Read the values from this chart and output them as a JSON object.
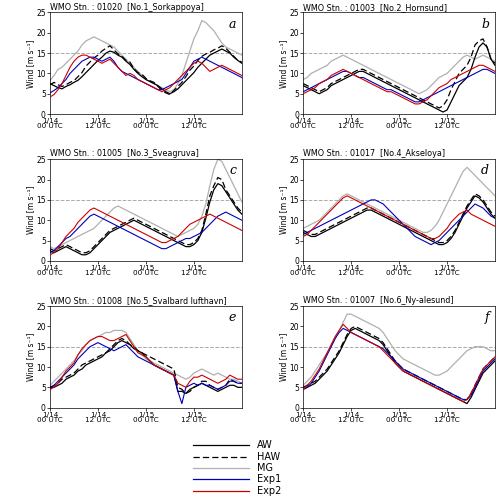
{
  "titles": [
    "WMO Stn. : 01020  [No.1_Sorkappoya]",
    "WMO Stn. : 01003  [No.2_Hornsund]",
    "WMO Stn. : 01005  [No.3_Sveagruva]",
    "WMO Stn. : 01017  [No.4_Akseloya]",
    "WMO Stn. : 01008  [No.5_Svalbard lufthavn]",
    "WMO Stn. : 01007  [No.6_Ny-alesund]"
  ],
  "panel_labels": [
    "a",
    "b",
    "c",
    "d",
    "e",
    "f"
  ],
  "ylabel": "Wind [m s⁻¹]",
  "xtick_labels": [
    "1/14\n00 UTC",
    "1/14\n12 UTC",
    "1/15\n00 UTC",
    "1/15\n12 UTC"
  ],
  "ylim": [
    0,
    25
  ],
  "yticks": [
    0,
    5,
    10,
    15,
    20,
    25
  ],
  "dashed_line_y": 15,
  "n_points": 49,
  "colors": {
    "AW": "#000000",
    "HAW": "#000000",
    "MG": "#b0b0b0",
    "Exp1": "#0000bb",
    "Exp2": "#cc0000"
  },
  "panel_a": {
    "AW": [
      7.5,
      7.0,
      6.5,
      6.2,
      6.8,
      7.2,
      7.8,
      8.3,
      9.2,
      10.2,
      11.2,
      12.2,
      13.2,
      14.0,
      15.0,
      15.5,
      15.2,
      14.5,
      14.0,
      13.0,
      12.2,
      11.0,
      10.0,
      9.2,
      8.5,
      8.0,
      7.5,
      7.0,
      6.2,
      5.5,
      5.0,
      5.5,
      6.2,
      7.2,
      8.2,
      9.2,
      10.2,
      11.5,
      12.5,
      13.5,
      14.5,
      15.0,
      15.5,
      16.0,
      15.5,
      15.0,
      14.0,
      13.2,
      12.5
    ],
    "HAW": [
      7.2,
      7.8,
      7.2,
      6.8,
      7.2,
      7.8,
      8.2,
      9.2,
      10.2,
      11.8,
      12.8,
      13.8,
      14.5,
      15.5,
      16.2,
      16.8,
      15.8,
      14.8,
      14.2,
      13.2,
      12.8,
      11.2,
      10.2,
      9.8,
      8.8,
      8.2,
      7.8,
      6.8,
      5.8,
      5.2,
      4.8,
      5.8,
      6.8,
      7.8,
      9.2,
      10.8,
      11.8,
      13.2,
      14.2,
      14.8,
      15.2,
      15.8,
      16.2,
      16.8,
      16.2,
      15.2,
      14.2,
      13.2,
      12.8
    ],
    "MG": [
      8.2,
      9.5,
      11.0,
      11.5,
      12.5,
      13.5,
      14.5,
      15.5,
      17.0,
      18.0,
      18.5,
      19.0,
      18.5,
      18.0,
      17.5,
      17.0,
      16.5,
      15.5,
      14.5,
      13.5,
      12.5,
      11.5,
      10.5,
      9.5,
      8.5,
      8.0,
      7.5,
      7.0,
      6.5,
      6.0,
      5.5,
      6.0,
      7.5,
      9.5,
      12.5,
      15.5,
      18.5,
      20.5,
      23.0,
      22.5,
      21.5,
      20.5,
      19.0,
      17.5,
      16.5,
      16.0,
      15.5,
      15.0,
      14.5
    ],
    "Exp1": [
      5.2,
      5.8,
      6.5,
      7.5,
      8.5,
      10.0,
      11.0,
      12.0,
      13.0,
      13.5,
      14.0,
      14.0,
      13.5,
      13.0,
      13.5,
      14.0,
      13.0,
      11.5,
      10.5,
      10.0,
      9.5,
      9.0,
      8.5,
      8.0,
      7.5,
      7.0,
      6.5,
      6.0,
      6.0,
      6.5,
      7.0,
      7.5,
      8.0,
      8.5,
      10.0,
      11.5,
      13.0,
      13.5,
      14.0,
      13.5,
      13.0,
      12.5,
      12.0,
      11.5,
      11.0,
      10.5,
      10.0,
      9.5,
      9.0
    ],
    "Exp2": [
      4.2,
      4.8,
      6.0,
      7.5,
      9.5,
      11.5,
      13.0,
      14.0,
      14.5,
      14.5,
      14.0,
      13.5,
      13.0,
      12.5,
      13.0,
      13.5,
      12.5,
      11.5,
      10.5,
      9.5,
      10.0,
      9.5,
      8.5,
      8.0,
      7.5,
      7.0,
      6.5,
      6.0,
      5.5,
      6.0,
      6.5,
      7.5,
      8.5,
      9.5,
      10.5,
      11.5,
      12.5,
      13.0,
      12.5,
      11.5,
      10.5,
      11.0,
      11.5,
      12.0,
      11.5,
      11.0,
      10.5,
      10.0,
      9.5
    ]
  },
  "panel_b": {
    "AW": [
      7.0,
      6.5,
      6.0,
      5.5,
      5.0,
      5.5,
      6.0,
      7.0,
      7.5,
      8.0,
      8.5,
      9.0,
      9.5,
      10.0,
      10.5,
      10.5,
      10.0,
      9.5,
      9.0,
      8.5,
      8.0,
      7.5,
      7.0,
      6.5,
      6.0,
      5.5,
      5.0,
      4.5,
      4.0,
      3.5,
      3.0,
      2.5,
      2.0,
      1.5,
      1.0,
      0.5,
      1.0,
      3.0,
      5.0,
      7.0,
      8.0,
      9.0,
      11.0,
      14.0,
      16.5,
      17.5,
      16.5,
      13.5,
      12.0
    ],
    "HAW": [
      7.5,
      7.0,
      6.5,
      6.0,
      5.5,
      6.0,
      6.5,
      7.5,
      8.0,
      8.5,
      9.0,
      9.5,
      10.0,
      10.5,
      11.0,
      11.0,
      10.5,
      10.0,
      9.5,
      9.0,
      8.5,
      8.0,
      7.5,
      7.0,
      6.5,
      6.0,
      5.5,
      5.0,
      4.5,
      4.0,
      3.5,
      3.0,
      2.5,
      2.0,
      1.5,
      2.0,
      3.5,
      6.0,
      8.0,
      10.0,
      11.0,
      12.0,
      14.0,
      17.0,
      18.0,
      18.5,
      16.5,
      13.5,
      12.5
    ],
    "MG": [
      8.5,
      9.0,
      10.0,
      10.5,
      11.0,
      11.5,
      12.0,
      13.0,
      13.5,
      14.0,
      14.5,
      14.0,
      13.5,
      13.0,
      12.5,
      12.0,
      11.5,
      11.0,
      10.5,
      10.0,
      9.5,
      9.0,
      8.5,
      8.0,
      7.5,
      7.0,
      6.5,
      6.0,
      5.5,
      5.0,
      5.5,
      6.0,
      7.0,
      8.0,
      9.0,
      9.5,
      10.0,
      11.0,
      12.0,
      13.0,
      14.0,
      14.5,
      14.0,
      13.5,
      14.0,
      14.5,
      14.0,
      13.5,
      13.0
    ],
    "Exp1": [
      5.5,
      6.0,
      6.5,
      7.0,
      7.5,
      8.0,
      8.5,
      9.0,
      9.5,
      10.0,
      10.5,
      10.5,
      10.0,
      9.5,
      9.0,
      9.0,
      8.5,
      8.0,
      7.5,
      7.0,
      6.5,
      6.0,
      6.0,
      5.5,
      5.0,
      4.5,
      4.0,
      3.5,
      3.0,
      3.0,
      3.5,
      4.0,
      4.5,
      5.0,
      5.5,
      6.0,
      6.5,
      7.0,
      7.5,
      8.0,
      8.5,
      9.0,
      9.5,
      10.0,
      10.5,
      11.0,
      11.0,
      10.5,
      10.0
    ],
    "Exp2": [
      5.0,
      5.5,
      6.0,
      6.5,
      7.5,
      8.0,
      8.5,
      9.5,
      10.0,
      10.5,
      11.0,
      10.5,
      10.0,
      9.5,
      9.0,
      8.5,
      8.0,
      7.5,
      7.0,
      6.5,
      6.0,
      5.5,
      5.5,
      5.0,
      4.5,
      4.0,
      3.5,
      3.0,
      2.5,
      2.5,
      3.0,
      3.5,
      4.5,
      5.5,
      6.5,
      7.0,
      7.5,
      8.5,
      9.0,
      9.5,
      10.0,
      10.5,
      11.0,
      11.5,
      12.0,
      12.0,
      11.5,
      11.0,
      10.5
    ]
  },
  "panel_c": {
    "AW": [
      2.5,
      2.0,
      2.5,
      3.0,
      3.5,
      3.0,
      2.5,
      2.0,
      1.5,
      1.5,
      2.0,
      3.0,
      4.0,
      5.0,
      6.0,
      7.0,
      7.5,
      8.0,
      8.5,
      9.0,
      9.5,
      10.0,
      9.5,
      9.0,
      8.5,
      8.0,
      7.5,
      7.0,
      6.5,
      6.0,
      5.5,
      5.0,
      4.5,
      4.0,
      3.5,
      3.5,
      4.0,
      5.0,
      7.0,
      10.5,
      14.5,
      17.5,
      19.0,
      18.5,
      17.0,
      15.5,
      14.0,
      12.5,
      11.5
    ],
    "HAW": [
      3.0,
      2.5,
      3.0,
      3.5,
      4.0,
      3.5,
      3.0,
      2.5,
      2.0,
      2.0,
      2.5,
      3.5,
      4.5,
      5.5,
      6.5,
      7.5,
      8.0,
      8.5,
      9.0,
      9.5,
      10.0,
      10.5,
      10.0,
      9.5,
      9.0,
      8.5,
      8.0,
      7.5,
      7.0,
      6.5,
      6.0,
      5.5,
      5.0,
      4.5,
      4.0,
      4.0,
      4.5,
      5.5,
      7.5,
      11.5,
      16.0,
      18.5,
      20.5,
      20.0,
      17.5,
      16.0,
      14.5,
      13.0,
      12.0
    ],
    "MG": [
      3.5,
      3.0,
      3.5,
      4.0,
      4.5,
      5.0,
      5.5,
      6.0,
      6.5,
      7.0,
      7.5,
      8.0,
      9.0,
      10.0,
      11.0,
      12.0,
      13.0,
      13.5,
      13.0,
      12.5,
      12.0,
      11.5,
      11.0,
      10.5,
      10.0,
      9.5,
      9.0,
      8.5,
      8.0,
      7.5,
      7.0,
      6.5,
      6.0,
      6.5,
      7.0,
      7.5,
      8.0,
      9.0,
      11.0,
      14.0,
      18.5,
      22.5,
      25.0,
      24.5,
      22.5,
      20.5,
      18.5,
      16.5,
      14.5
    ],
    "Exp1": [
      2.0,
      2.5,
      3.5,
      4.5,
      5.5,
      6.0,
      7.0,
      8.0,
      9.0,
      10.0,
      11.0,
      11.5,
      11.0,
      10.5,
      10.0,
      9.5,
      9.0,
      8.5,
      8.0,
      7.5,
      7.0,
      6.5,
      6.0,
      5.5,
      5.0,
      4.5,
      4.0,
      3.5,
      3.0,
      3.0,
      3.5,
      4.0,
      4.5,
      5.0,
      5.5,
      5.5,
      6.0,
      6.5,
      7.0,
      8.0,
      9.0,
      10.0,
      11.0,
      11.5,
      12.0,
      11.5,
      11.0,
      10.5,
      10.0
    ],
    "Exp2": [
      1.5,
      2.0,
      3.0,
      4.5,
      6.0,
      7.0,
      8.0,
      9.5,
      10.5,
      11.5,
      12.5,
      13.0,
      12.5,
      12.0,
      11.5,
      11.0,
      10.5,
      10.0,
      9.5,
      9.0,
      8.5,
      8.0,
      7.5,
      7.0,
      6.5,
      6.0,
      5.5,
      5.0,
      4.5,
      4.5,
      5.0,
      5.5,
      6.0,
      7.0,
      8.0,
      9.0,
      9.5,
      10.0,
      10.5,
      11.0,
      11.5,
      11.0,
      10.5,
      10.0,
      9.5,
      9.0,
      8.5,
      8.0,
      7.5
    ]
  },
  "panel_d": {
    "AW": [
      7.0,
      6.5,
      6.0,
      6.0,
      6.5,
      7.0,
      7.5,
      8.0,
      8.5,
      9.0,
      9.5,
      10.0,
      10.5,
      11.0,
      11.5,
      12.0,
      12.5,
      12.5,
      12.0,
      11.5,
      11.0,
      10.5,
      10.0,
      9.5,
      9.0,
      8.5,
      8.0,
      7.5,
      7.0,
      6.5,
      6.0,
      5.5,
      5.0,
      4.5,
      4.0,
      4.0,
      4.5,
      5.5,
      7.0,
      9.0,
      11.0,
      13.0,
      14.5,
      16.0,
      15.5,
      14.5,
      13.0,
      11.5,
      10.5
    ],
    "HAW": [
      7.5,
      7.0,
      6.5,
      6.5,
      7.0,
      7.5,
      8.0,
      8.5,
      9.0,
      9.5,
      10.0,
      10.5,
      11.0,
      11.5,
      12.0,
      12.5,
      13.0,
      13.0,
      12.5,
      12.0,
      11.5,
      11.0,
      10.5,
      10.0,
      9.5,
      9.0,
      8.5,
      8.0,
      7.5,
      7.0,
      6.5,
      6.0,
      5.5,
      5.0,
      4.5,
      4.5,
      5.0,
      6.0,
      7.5,
      9.5,
      11.5,
      13.5,
      15.0,
      16.5,
      16.0,
      15.0,
      13.5,
      12.0,
      11.0
    ],
    "MG": [
      8.0,
      8.5,
      9.0,
      9.5,
      10.0,
      11.0,
      12.0,
      13.0,
      14.0,
      15.0,
      16.0,
      16.5,
      16.0,
      15.5,
      15.0,
      14.5,
      14.0,
      13.5,
      13.0,
      12.5,
      12.0,
      11.5,
      11.0,
      10.5,
      10.0,
      9.5,
      9.0,
      8.5,
      8.0,
      7.5,
      7.0,
      7.0,
      7.5,
      8.5,
      10.0,
      12.0,
      14.0,
      16.0,
      18.0,
      20.0,
      22.0,
      23.0,
      22.0,
      21.0,
      20.0,
      19.0,
      18.0,
      17.0,
      16.0
    ],
    "Exp1": [
      6.5,
      7.0,
      7.5,
      8.0,
      8.5,
      9.0,
      9.5,
      10.0,
      10.5,
      11.0,
      11.5,
      12.0,
      12.5,
      13.0,
      13.5,
      14.0,
      14.5,
      15.0,
      15.0,
      14.5,
      14.0,
      13.0,
      12.0,
      11.0,
      10.0,
      9.0,
      8.0,
      7.0,
      6.0,
      5.5,
      5.0,
      4.5,
      4.0,
      4.5,
      5.0,
      6.0,
      7.0,
      8.0,
      9.0,
      10.0,
      11.0,
      12.0,
      13.0,
      14.0,
      13.5,
      13.0,
      12.0,
      11.0,
      10.5
    ],
    "Exp2": [
      6.0,
      6.5,
      7.5,
      8.5,
      9.5,
      10.5,
      11.5,
      12.5,
      13.5,
      14.5,
      15.5,
      16.0,
      15.5,
      15.0,
      14.5,
      14.0,
      13.5,
      13.0,
      12.5,
      12.0,
      11.5,
      11.0,
      10.5,
      10.0,
      9.5,
      9.0,
      8.5,
      8.0,
      7.5,
      7.0,
      6.5,
      6.0,
      5.5,
      5.5,
      6.0,
      7.0,
      8.0,
      9.5,
      10.5,
      11.5,
      12.0,
      12.5,
      11.5,
      11.0,
      10.5,
      10.0,
      9.5,
      9.0,
      8.5
    ]
  },
  "panel_e": {
    "AW": [
      5.0,
      5.0,
      5.5,
      6.0,
      7.0,
      7.5,
      8.0,
      9.0,
      9.5,
      10.5,
      11.0,
      11.5,
      12.0,
      12.5,
      13.5,
      14.0,
      15.0,
      16.0,
      16.5,
      16.0,
      15.5,
      14.5,
      14.0,
      13.5,
      12.5,
      11.5,
      10.5,
      10.0,
      9.5,
      9.0,
      8.5,
      8.0,
      4.0,
      4.0,
      3.5,
      4.5,
      5.0,
      5.5,
      6.0,
      5.5,
      5.0,
      4.5,
      4.0,
      4.5,
      5.0,
      5.5,
      5.5,
      5.0,
      5.0
    ],
    "HAW": [
      5.0,
      5.5,
      6.0,
      7.0,
      7.5,
      8.0,
      8.5,
      9.5,
      10.5,
      11.0,
      11.5,
      12.0,
      12.5,
      13.0,
      13.5,
      14.5,
      15.5,
      16.5,
      17.0,
      16.5,
      15.5,
      15.0,
      14.0,
      13.5,
      13.0,
      12.5,
      12.0,
      11.5,
      11.0,
      10.5,
      10.0,
      9.5,
      5.0,
      4.5,
      3.5,
      4.0,
      5.0,
      5.5,
      6.5,
      6.5,
      5.5,
      5.0,
      4.5,
      5.0,
      5.5,
      7.0,
      6.5,
      6.0,
      6.0
    ],
    "MG": [
      5.5,
      6.5,
      7.5,
      8.5,
      9.5,
      10.5,
      11.5,
      13.0,
      14.0,
      15.5,
      16.5,
      17.0,
      17.5,
      18.0,
      18.5,
      18.5,
      19.0,
      19.0,
      19.0,
      18.5,
      17.0,
      15.5,
      14.0,
      13.0,
      12.0,
      11.5,
      11.0,
      10.5,
      10.0,
      9.5,
      9.0,
      8.5,
      8.0,
      7.5,
      7.0,
      7.5,
      8.5,
      9.0,
      9.5,
      9.0,
      8.5,
      8.0,
      8.5,
      8.0,
      7.5,
      7.0,
      7.0,
      6.5,
      6.0
    ],
    "Exp1": [
      4.5,
      5.5,
      6.5,
      7.5,
      8.5,
      9.5,
      10.5,
      12.0,
      13.0,
      14.0,
      15.0,
      15.5,
      16.0,
      15.5,
      15.0,
      14.5,
      14.0,
      14.5,
      15.0,
      15.5,
      14.5,
      13.5,
      12.5,
      12.0,
      11.5,
      11.0,
      10.5,
      10.0,
      9.5,
      9.0,
      8.5,
      8.0,
      4.0,
      1.0,
      5.0,
      5.5,
      6.0,
      5.5,
      6.0,
      5.5,
      5.5,
      5.0,
      4.5,
      5.0,
      5.5,
      6.5,
      6.5,
      6.0,
      6.0
    ],
    "Exp2": [
      4.5,
      5.0,
      6.0,
      7.5,
      9.0,
      10.0,
      11.0,
      13.0,
      14.5,
      15.5,
      16.5,
      17.0,
      17.5,
      17.5,
      17.0,
      16.5,
      16.5,
      17.0,
      17.5,
      18.0,
      16.5,
      15.0,
      13.5,
      13.0,
      12.5,
      11.5,
      10.5,
      10.0,
      9.5,
      9.0,
      8.5,
      8.0,
      6.0,
      5.5,
      5.0,
      6.5,
      7.5,
      7.5,
      8.0,
      7.5,
      7.0,
      6.5,
      6.0,
      6.5,
      7.0,
      8.0,
      7.5,
      7.0,
      7.0
    ]
  },
  "panel_f": {
    "AW": [
      4.5,
      5.0,
      5.5,
      6.0,
      7.0,
      8.0,
      9.0,
      10.5,
      12.0,
      13.5,
      15.5,
      17.5,
      19.0,
      19.5,
      19.0,
      18.5,
      18.0,
      17.5,
      17.0,
      16.5,
      15.5,
      14.0,
      12.5,
      11.0,
      10.0,
      9.0,
      8.5,
      8.0,
      7.5,
      7.0,
      6.5,
      6.0,
      5.5,
      5.0,
      4.5,
      4.0,
      3.5,
      3.0,
      2.5,
      2.0,
      1.5,
      1.0,
      2.5,
      4.5,
      6.5,
      8.5,
      9.5,
      10.5,
      11.5
    ],
    "HAW": [
      5.0,
      5.5,
      6.0,
      6.5,
      7.5,
      8.5,
      9.5,
      11.0,
      12.5,
      14.0,
      16.0,
      18.0,
      19.5,
      20.0,
      19.5,
      19.0,
      18.5,
      18.0,
      17.5,
      17.0,
      16.0,
      14.5,
      13.0,
      11.5,
      10.5,
      9.5,
      9.0,
      8.5,
      8.0,
      7.5,
      7.0,
      6.5,
      6.0,
      5.5,
      5.0,
      4.5,
      4.0,
      3.5,
      3.0,
      2.5,
      2.0,
      2.0,
      3.5,
      5.5,
      7.5,
      9.5,
      10.5,
      11.5,
      12.5
    ],
    "MG": [
      5.5,
      6.5,
      7.5,
      9.0,
      10.5,
      12.0,
      13.5,
      15.0,
      17.0,
      19.0,
      21.0,
      23.0,
      23.0,
      22.5,
      22.0,
      21.5,
      21.0,
      20.5,
      20.0,
      19.5,
      18.5,
      17.0,
      15.5,
      14.0,
      13.0,
      12.0,
      11.5,
      11.0,
      10.5,
      10.0,
      9.5,
      9.0,
      8.5,
      8.0,
      8.0,
      8.5,
      9.0,
      10.0,
      11.0,
      12.0,
      13.0,
      14.0,
      14.5,
      15.0,
      15.0,
      15.0,
      14.5,
      14.0,
      14.0
    ],
    "Exp1": [
      4.5,
      5.0,
      6.0,
      7.5,
      9.0,
      11.0,
      13.0,
      15.0,
      17.0,
      18.5,
      19.5,
      19.0,
      18.5,
      18.0,
      17.5,
      17.0,
      16.5,
      16.0,
      15.5,
      15.0,
      14.5,
      13.5,
      12.5,
      11.5,
      10.5,
      9.5,
      9.0,
      8.5,
      8.0,
      7.5,
      7.0,
      6.5,
      6.0,
      5.5,
      5.0,
      4.5,
      4.0,
      3.5,
      3.0,
      2.5,
      2.0,
      2.0,
      3.0,
      5.0,
      7.0,
      9.0,
      10.0,
      11.0,
      12.0
    ],
    "Exp2": [
      4.5,
      5.5,
      6.5,
      8.0,
      9.5,
      11.5,
      13.5,
      15.5,
      17.5,
      19.0,
      20.5,
      19.5,
      18.5,
      18.0,
      17.5,
      17.0,
      16.5,
      16.0,
      15.5,
      15.0,
      14.0,
      13.0,
      12.0,
      11.0,
      10.0,
      9.0,
      8.5,
      8.0,
      7.5,
      7.0,
      6.5,
      6.0,
      5.5,
      5.0,
      4.5,
      4.0,
      3.5,
      3.0,
      2.5,
      2.0,
      1.5,
      2.0,
      3.5,
      5.5,
      7.5,
      9.5,
      10.5,
      11.5,
      12.5
    ]
  }
}
